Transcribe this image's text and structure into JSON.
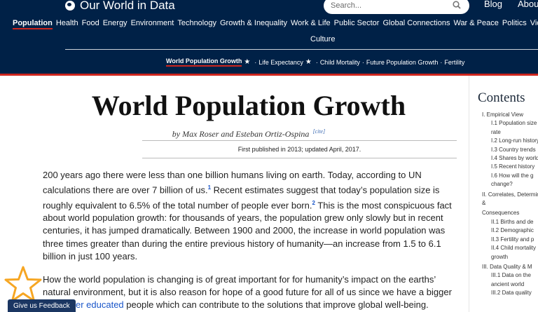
{
  "header": {
    "brand": "Our World in Data",
    "search_placeholder": "Search...",
    "links": {
      "blog": "Blog",
      "about": "About"
    },
    "topics": [
      "Population",
      "Health",
      "Food",
      "Energy",
      "Environment",
      "Technology",
      "Growth & Inequality",
      "Work & Life",
      "Public Sector",
      "Global Connections",
      "War & Peace",
      "Politics",
      "Violence"
    ],
    "topics_line2": "Culture",
    "subnav": {
      "active": "World Population Growth",
      "items": [
        "Life Expectancy",
        "Child Mortality",
        "Future Population Growth",
        "Fertility"
      ]
    }
  },
  "article": {
    "title": "World Population Growth",
    "byline": "by Max Roser and Esteban Ortiz-Ospina",
    "cite": "[cite]",
    "published": "First published in 2013; updated April, 2017.",
    "p1": {
      "a": "200 years ago there were less than one billion humans living on earth. Today, according to UN calculations there are over 7 billion of us.",
      "fn1": "1",
      "b": " Recent estimates suggest that today’s population size is roughly equivalent to 6.5% of the total number of people ever born.",
      "fn2": "2",
      "c": " This is the most conspicuous fact about world population growth: for thousands of years, the population grew only slowly but in recent centuries, it has jumped dramatically. Between 1900 and 2000, the increase in world population was three times greater than during the entire previous history of humanity—an increase from 1.5 to 6.1 billion in just 100 years."
    },
    "p2": {
      "a": "How the world population is changing is of great important for for humanity’s impact on the earths’ natural environment, but it is also reason for hope of a good future for all of us since we have a bigger and ",
      "link": "better educated",
      "b": " people which can contribute to the solutions that improve global well-being."
    }
  },
  "sidebar": {
    "title": "Contents",
    "toc": [
      {
        "text": "I. Empirical View",
        "level": 0
      },
      {
        "text": "I.1 Population size",
        "level": 1
      },
      {
        "text": "rate",
        "level": 1
      },
      {
        "text": "I.2 Long-run history",
        "level": 1
      },
      {
        "text": "I.3 Country trends",
        "level": 1
      },
      {
        "text": "I.4 Shares by world",
        "level": 1
      },
      {
        "text": "I.5 Recent history",
        "level": 1
      },
      {
        "text": "I.6 How will the g",
        "level": 1
      },
      {
        "text": "change?",
        "level": 1
      },
      {
        "text": "II. Correlates, Determinants &",
        "level": 0
      },
      {
        "text": "Consequences",
        "level": 0
      },
      {
        "text": "II.1 Births and de",
        "level": 1
      },
      {
        "text": "II.2 Demographic",
        "level": 1
      },
      {
        "text": "II.3 Fertility and p",
        "level": 1
      },
      {
        "text": "II.4 Child mortality",
        "level": 1
      },
      {
        "text": "growth",
        "level": 1
      },
      {
        "text": "III. Data Quality & M",
        "level": 0
      },
      {
        "text": "III.1 Data on the",
        "level": 1
      },
      {
        "text": "ancient world",
        "level": 1
      },
      {
        "text": "III.2 Data quality",
        "level": 1
      }
    ]
  },
  "feedback": {
    "label": "Give us Feedback"
  },
  "colors": {
    "header_bg": "#002147",
    "accent_red": "#ce261e",
    "link_blue": "#1a56c9",
    "star_orange": "#f6a623"
  }
}
